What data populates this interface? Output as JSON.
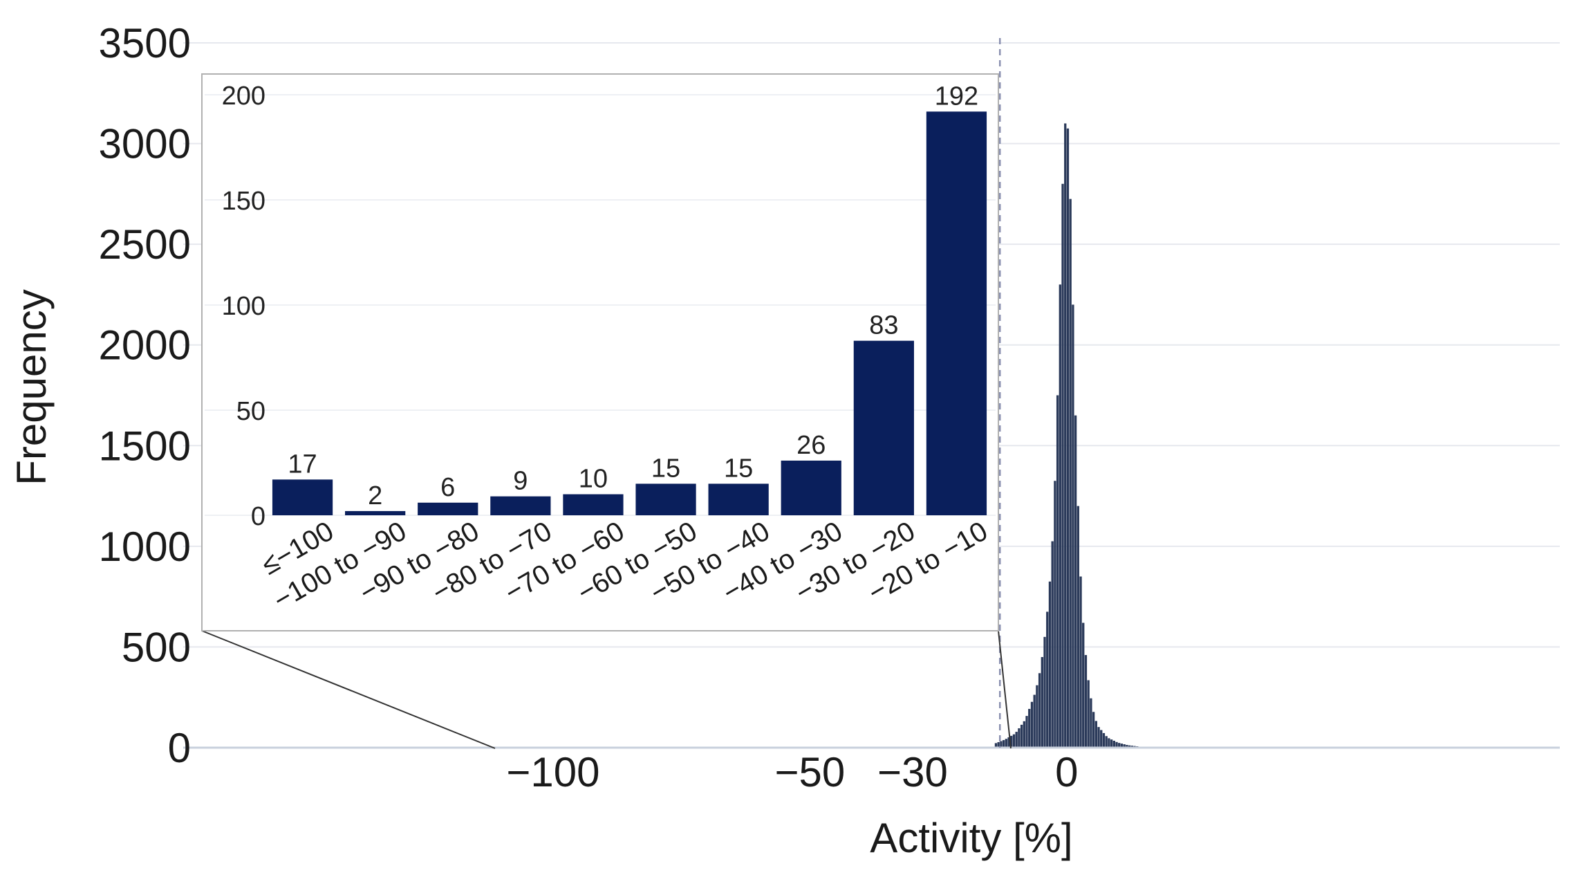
{
  "chart_data": [
    {
      "type": "bar",
      "xlabel": "Activity [%]",
      "ylabel": "Frequency",
      "yticks": [
        "0",
        "500",
        "1000",
        "1500",
        "2000",
        "2500",
        "3000",
        "3500"
      ],
      "ylim": [
        0,
        3500
      ],
      "xticks": [
        "−100",
        "−50",
        "−30",
        "0"
      ],
      "xtick_values": [
        -100,
        -50,
        -30,
        0
      ],
      "xlim": [
        -172,
        96
      ],
      "grid": true,
      "reference_line_x": -13,
      "bin_width": 0.5,
      "histogram_shape": "narrow peak centred near 0, maximum count about 3200",
      "peak_values": {
        "x": [
          -14,
          -12,
          -10,
          -8,
          -6,
          -5,
          -4,
          -3,
          -2.5,
          -2,
          -1.5,
          -1,
          -0.5,
          0,
          0.5,
          1,
          1.5,
          2,
          2.5,
          3,
          4,
          5,
          6,
          8,
          10,
          12,
          14
        ],
        "y": [
          20,
          40,
          70,
          140,
          280,
          400,
          600,
          900,
          1150,
          1500,
          2000,
          2600,
          3000,
          3200,
          2950,
          2500,
          1900,
          1400,
          1000,
          700,
          380,
          200,
          110,
          50,
          25,
          12,
          6
        ]
      },
      "color": "#2b3a5a"
    },
    {
      "type": "bar",
      "inset": true,
      "categories": [
        "≤−100",
        "−100 to −90",
        "−90 to −80",
        "−80 to −70",
        "−70 to −60",
        "−60 to −50",
        "−50 to −40",
        "−40 to −30",
        "−30 to −20",
        "−20 to −10"
      ],
      "values": [
        17,
        2,
        6,
        9,
        10,
        15,
        15,
        26,
        83,
        192
      ],
      "data_labels": [
        "17",
        "2",
        "6",
        "9",
        "10",
        "15",
        "15",
        "26",
        "83",
        "192"
      ],
      "yticks": [
        "0",
        "50",
        "100",
        "150",
        "200"
      ],
      "ylim": [
        0,
        200
      ],
      "grid": true,
      "color": "#0a1f5c"
    }
  ]
}
